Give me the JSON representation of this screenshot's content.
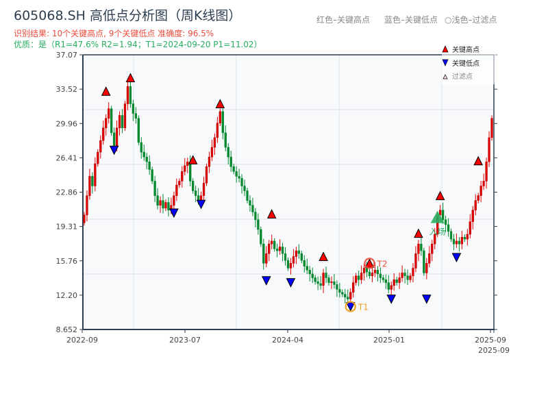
{
  "header": {
    "title": "605068.SH 高低点分析图（周K线图）",
    "result_line": "识别结果: 10个关键高点, 9个关键低点   准确度: 96.5%",
    "quality_line": "优质：是（R1=47.6%  R2=1.94；T1=2024-09-20 P1=11.02）",
    "legend_red": "红色–关键高点",
    "legend_blue": "蓝色–关键低点",
    "legend_light": "○浅色–过滤点"
  },
  "chart_data": {
    "type": "candlestick",
    "title": "605068.SH 高低点分析图（周K线图）",
    "ylim": [
      8.652,
      37.07
    ],
    "y_ticks": [
      "37.07",
      "33.52",
      "29.96",
      "26.41",
      "22.86",
      "19.31",
      "15.76",
      "12.20",
      "8.652"
    ],
    "x_ticks": [
      "2022-09",
      "2023-07",
      "2024-04",
      "2025-01",
      "2025-09",
      "2025-09"
    ],
    "grid": true,
    "legend_position": "top-right",
    "legend": [
      {
        "label": "关键高点",
        "color": "#ff0000"
      },
      {
        "label": "关键低点",
        "color": "#0000ff"
      },
      {
        "label": "过滤点",
        "color": "#ffcccc"
      }
    ],
    "colors": {
      "up": "#e00000",
      "down": "#00882e",
      "high": "#ff0000",
      "low": "#0000ff",
      "entry": "#27ae60",
      "t1": "#f39c12",
      "t2": "#e74c3c"
    },
    "closes": [
      20.5,
      22.5,
      24.5,
      23.5,
      25.8,
      27.0,
      28.2,
      29.5,
      30.5,
      31.5,
      29.0,
      27.5,
      29.5,
      30.8,
      29.5,
      32.0,
      33.8,
      32.0,
      31.0,
      30.5,
      28.0,
      27.0,
      26.5,
      26.0,
      25.2,
      24.0,
      22.5,
      21.5,
      22.0,
      21.2,
      21.8,
      21.0,
      21.5,
      22.5,
      23.6,
      24.0,
      25.0,
      25.6,
      26.0,
      24.0,
      23.0,
      22.5,
      22.0,
      22.5,
      23.8,
      25.5,
      26.5,
      27.5,
      28.5,
      30.0,
      31.2,
      29.0,
      27.5,
      26.5,
      25.5,
      25.0,
      24.5,
      24.3,
      23.5,
      23.0,
      22.0,
      21.5,
      20.8,
      20.0,
      19.0,
      17.5,
      15.5,
      16.5,
      17.5,
      17.8,
      17.0,
      16.8,
      17.2,
      16.5,
      15.8,
      15.0,
      15.5,
      16.2,
      16.8,
      16.5,
      15.8,
      15.2,
      14.8,
      14.4,
      14.0,
      13.6,
      13.4,
      13.2,
      14.5,
      14.0,
      13.5,
      13.6,
      13.3,
      12.8,
      12.5,
      12.3,
      12.0,
      11.8,
      12.5,
      13.5,
      14.2,
      13.8,
      14.5,
      15.0,
      14.6,
      14.2,
      14.5,
      14.8,
      14.4,
      14.0,
      13.8,
      13.5,
      12.8,
      13.2,
      13.8,
      13.5,
      14.0,
      14.5,
      14.2,
      13.8,
      14.2,
      15.0,
      16.5,
      17.5,
      16.8,
      14.5,
      15.5,
      16.5,
      17.5,
      18.5,
      20.5,
      21.0,
      20.0,
      19.5,
      18.8,
      18.0,
      17.5,
      17.8,
      17.5,
      18.2,
      18.0,
      18.5,
      19.8,
      21.0,
      22.0,
      22.5,
      23.5,
      24.0,
      26.0,
      28.5,
      30.5
    ],
    "key_highs": [
      {
        "week": 8,
        "price": 33.3
      },
      {
        "week": 17,
        "price": 34.7
      },
      {
        "week": 40,
        "price": 26.2
      },
      {
        "week": 50,
        "price": 32.0
      },
      {
        "week": 69,
        "price": 20.6
      },
      {
        "week": 88,
        "price": 16.2
      },
      {
        "week": 105,
        "price": 15.5
      },
      {
        "week": 123,
        "price": 18.6
      },
      {
        "week": 131,
        "price": 22.5
      },
      {
        "week": 145,
        "price": 26.1
      }
    ],
    "key_lows": [
      {
        "week": 11,
        "price": 27.2
      },
      {
        "week": 33,
        "price": 20.7
      },
      {
        "week": 43,
        "price": 21.6
      },
      {
        "week": 67,
        "price": 13.7
      },
      {
        "week": 76,
        "price": 13.5
      },
      {
        "week": 98,
        "price": 11.02
      },
      {
        "week": 113,
        "price": 11.8
      },
      {
        "week": 126,
        "price": 11.8
      },
      {
        "week": 137,
        "price": 16.1
      }
    ],
    "annotations": [
      {
        "label": "T1",
        "week": 98,
        "price": 11.02,
        "kind": "low"
      },
      {
        "label": "T2",
        "week": 105,
        "price": 15.5,
        "kind": "high"
      },
      {
        "label": "入场",
        "week": 130,
        "price": 20.3,
        "kind": "entry"
      }
    ]
  }
}
